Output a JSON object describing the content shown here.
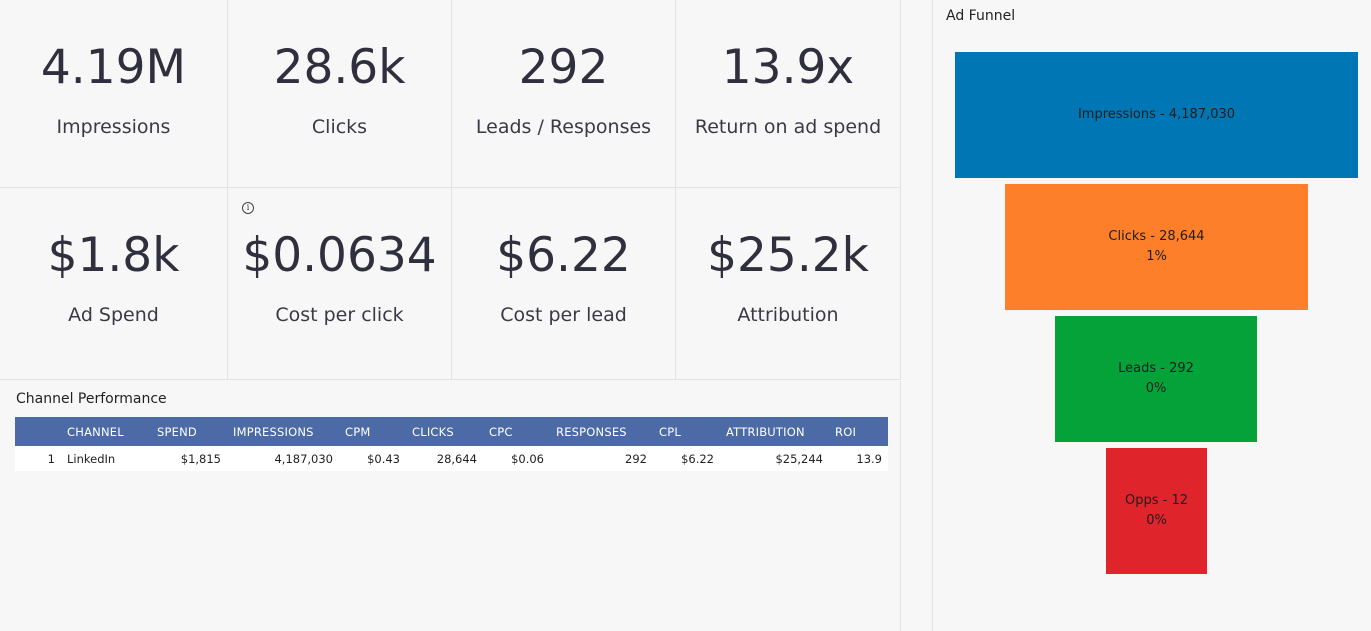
{
  "kpis": [
    {
      "value": "4.19M",
      "label": "Impressions"
    },
    {
      "value": "28.6k",
      "label": "Clicks"
    },
    {
      "value": "292",
      "label": "Leads / Responses"
    },
    {
      "value": "13.9x",
      "label": "Return on ad spend"
    },
    {
      "value": "$1.8k",
      "label": "Ad Spend"
    },
    {
      "value": "$0.0634",
      "label": "Cost per click"
    },
    {
      "value": "$6.22",
      "label": "Cost per lead"
    },
    {
      "value": "$25.2k",
      "label": "Attribution"
    }
  ],
  "info_icon": "info-icon",
  "channel_performance": {
    "title": "Channel Performance",
    "columns": [
      "CHANNEL",
      "SPEND",
      "IMPRESSIONS",
      "CPM",
      "CLICKS",
      "CPC",
      "RESPONSES",
      "CPL",
      "ATTRIBUTION",
      "ROI"
    ],
    "rows": [
      {
        "index": "1",
        "channel": "LinkedIn",
        "spend": "$1,815",
        "impressions": "4,187,030",
        "cpm": "$0.43",
        "clicks": "28,644",
        "cpc": "$0.06",
        "responses": "292",
        "cpl": "$6.22",
        "attribution": "$25,244",
        "roi": "13.9"
      }
    ],
    "header_color": "#4c6ba6"
  },
  "ad_funnel": {
    "title": "Ad Funnel",
    "stages": [
      {
        "label": "Impressions - 4,187,030",
        "pct": "",
        "value": 4187030,
        "color": "#0077b4"
      },
      {
        "label": "Clicks - 28,644",
        "pct": "1%",
        "value": 28644,
        "color": "#fd7f2a"
      },
      {
        "label": "Leads - 292",
        "pct": "0%",
        "value": 292,
        "color": "#05a23a"
      },
      {
        "label": "Opps - 12",
        "pct": "0%",
        "value": 12,
        "color": "#e0242c"
      }
    ]
  }
}
